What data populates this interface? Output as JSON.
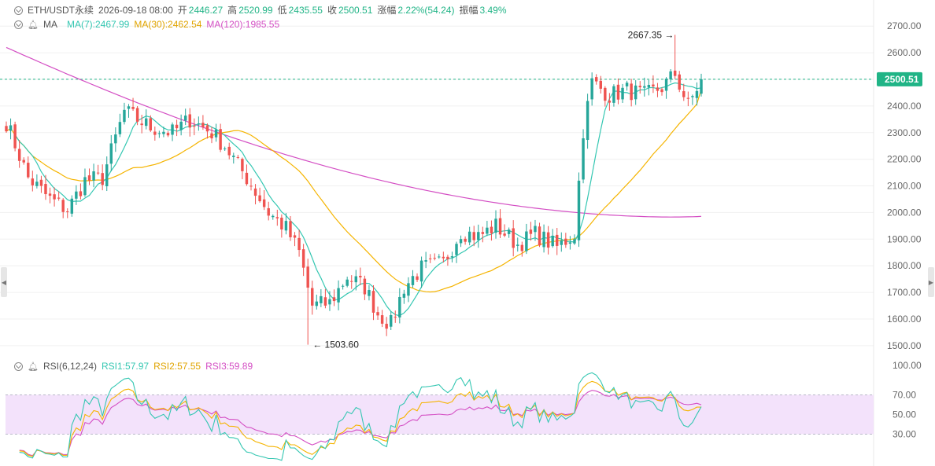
{
  "header": {
    "symbol": "ETH/USDT永续",
    "datetime": "2026-09-18 08:00",
    "open_label": "开",
    "open": "2446.27",
    "high_label": "高",
    "high": "2520.99",
    "low_label": "低",
    "low": "2435.55",
    "close_label": "收",
    "close": "2500.51",
    "change_label": "涨幅",
    "change": "2.22%(54.24)",
    "amplitude_label": "振幅",
    "amplitude": "3.49%"
  },
  "ma_legend": {
    "label": "MA",
    "ma7": "MA(7):2467.99",
    "ma30": "MA(30):2462.54",
    "ma120": "MA(120):1985.55"
  },
  "rsi_legend": {
    "label": "RSI(6,12,24)",
    "rsi1": "RSI1:57.97",
    "rsi2": "RSI2:57.55",
    "rsi3": "RSI3:59.89"
  },
  "price_annotations": {
    "high_mark": "2667.35",
    "low_mark": "1503.60",
    "current_price": "2500.51"
  },
  "colors": {
    "up": "#26a69a",
    "down": "#ef5350",
    "ma7": "#35c7b2",
    "ma30": "#f5b400",
    "ma120": "#d44fc4",
    "rsi1": "#35c7b2",
    "rsi2": "#f5b400",
    "rsi3": "#d44fc4",
    "rsi_band": "#f3e2fb",
    "price_line": "#20b486"
  },
  "icons": [
    "visibility-toggle-icon",
    "alarm-bell-icon",
    "scroll-left-icon",
    "scroll-right-icon"
  ],
  "chart_data": [
    {
      "type": "candlestick",
      "title": "ETH/USDT永续",
      "y_axis_ticks": [
        "2700.00",
        "2600.00",
        "2500.00",
        "2400.00",
        "2300.00",
        "2200.00",
        "2100.00",
        "2000.00",
        "1900.00",
        "1800.00",
        "1700.00",
        "1600.00",
        "1500.00"
      ],
      "ylim": [
        1470,
        2745
      ],
      "n_candles": 160,
      "anchors": [
        {
          "i": 0,
          "p": 2340
        },
        {
          "i": 5,
          "p": 2130
        },
        {
          "i": 10,
          "p": 2050
        },
        {
          "i": 14,
          "p": 2010
        },
        {
          "i": 18,
          "p": 2120
        },
        {
          "i": 22,
          "p": 2130
        },
        {
          "i": 27,
          "p": 2380
        },
        {
          "i": 33,
          "p": 2320
        },
        {
          "i": 38,
          "p": 2300
        },
        {
          "i": 42,
          "p": 2350
        },
        {
          "i": 47,
          "p": 2300
        },
        {
          "i": 50,
          "p": 2250
        },
        {
          "i": 55,
          "p": 2130
        },
        {
          "i": 60,
          "p": 2000
        },
        {
          "i": 64,
          "p": 1940
        },
        {
          "i": 67,
          "p": 1850
        },
        {
          "i": 70,
          "p": 1650
        },
        {
          "i": 74,
          "p": 1660
        },
        {
          "i": 78,
          "p": 1760
        },
        {
          "i": 82,
          "p": 1720
        },
        {
          "i": 85,
          "p": 1620
        },
        {
          "i": 88,
          "p": 1580
        },
        {
          "i": 91,
          "p": 1720
        },
        {
          "i": 95,
          "p": 1790
        },
        {
          "i": 100,
          "p": 1810
        },
        {
          "i": 104,
          "p": 1930
        },
        {
          "i": 108,
          "p": 1910
        },
        {
          "i": 112,
          "p": 1950
        },
        {
          "i": 117,
          "p": 1880
        },
        {
          "i": 121,
          "p": 1920
        },
        {
          "i": 126,
          "p": 1870
        },
        {
          "i": 130,
          "p": 1920
        },
        {
          "i": 132,
          "p": 2310
        },
        {
          "i": 134,
          "p": 2490
        },
        {
          "i": 138,
          "p": 2440
        },
        {
          "i": 142,
          "p": 2460
        },
        {
          "i": 146,
          "p": 2440
        },
        {
          "i": 150,
          "p": 2470
        },
        {
          "i": 153,
          "p": 2520
        },
        {
          "i": 156,
          "p": 2400
        },
        {
          "i": 159,
          "p": 2500
        }
      ],
      "high_point": {
        "index": 153,
        "value": 2667.35
      },
      "low_point": {
        "index": 69,
        "value": 1503.6
      },
      "last_price": 2500.51,
      "ma7_last": 2467.99,
      "ma30_last": 2462.54,
      "ma120_last": 1985.55,
      "ma120_start": 2620
    },
    {
      "type": "line",
      "title": "RSI(6,12,24)",
      "y_axis_ticks": [
        "100.00",
        "70.00",
        "50.00",
        "30.00"
      ],
      "ylim": [
        0,
        100
      ],
      "band": [
        30,
        70
      ],
      "series": [
        {
          "name": "RSI1",
          "last": 57.97
        },
        {
          "name": "RSI2",
          "last": 57.55
        },
        {
          "name": "RSI3",
          "last": 59.89
        }
      ]
    }
  ]
}
